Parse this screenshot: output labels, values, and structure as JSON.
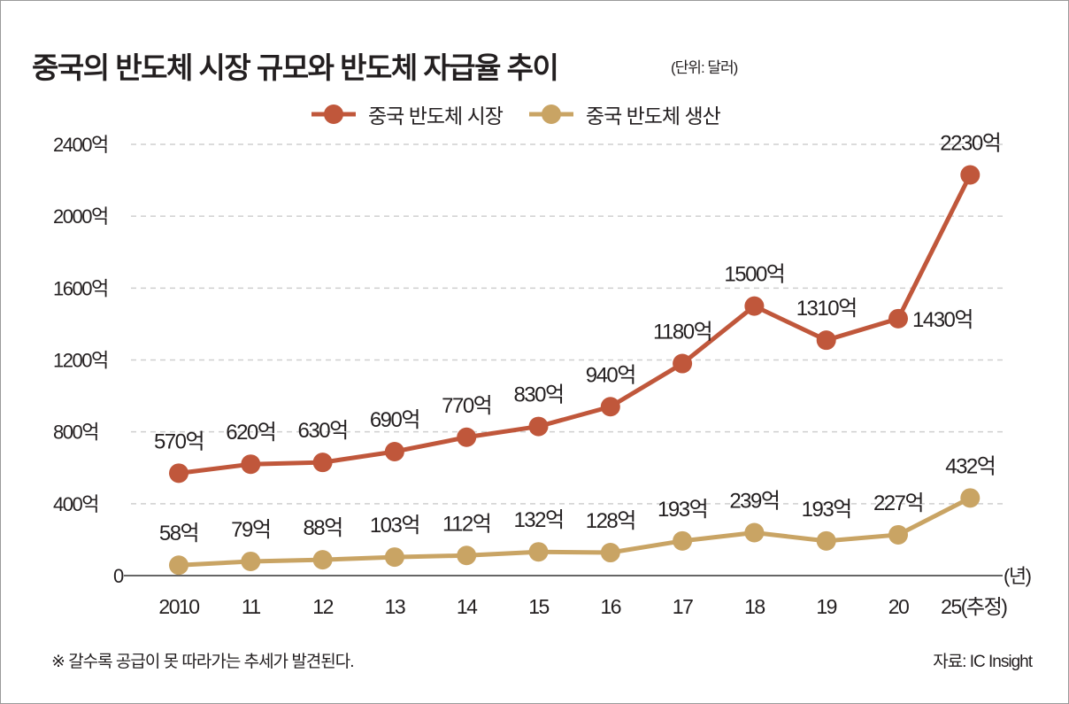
{
  "chart_data": {
    "type": "line",
    "title": "중국의 반도체 시장 규모와 반도체 자급율 추이",
    "unit_note": "(단위: 달러)",
    "categories": [
      "2010",
      "11",
      "12",
      "13",
      "14",
      "15",
      "16",
      "17",
      "18",
      "19",
      "20",
      "25(추정)"
    ],
    "xlabel": "(년)",
    "y_ticks": [
      "0",
      "400억",
      "800억",
      "1200억",
      "1600억",
      "2000억",
      "2400억"
    ],
    "y_tick_values": [
      0,
      400,
      800,
      1200,
      1600,
      2000,
      2400
    ],
    "ylim": [
      0,
      2400
    ],
    "grid": true,
    "legend_position": "top-center",
    "series": [
      {
        "name": "중국 반도체 시장",
        "color": "#c0573b",
        "values": [
          570,
          620,
          630,
          690,
          770,
          830,
          940,
          1180,
          1500,
          1310,
          1430,
          2230
        ],
        "labels": [
          "570억",
          "620억",
          "630억",
          "690억",
          "770억",
          "830억",
          "940억",
          "1180억",
          "1500억",
          "1310억",
          "1430억",
          "2230억"
        ]
      },
      {
        "name": "중국 반도체 생산",
        "color": "#c9a464",
        "values": [
          58,
          79,
          88,
          103,
          112,
          132,
          128,
          193,
          239,
          193,
          227,
          432
        ],
        "labels": [
          "58억",
          "79억",
          "88억",
          "103억",
          "112억",
          "132억",
          "128억",
          "193억",
          "239억",
          "193억",
          "227억",
          "432억"
        ]
      }
    ]
  },
  "footer": {
    "note": "※ 갈수록 공급이 못 따라가는 추세가 발견된다.",
    "source": "자료: IC Insight"
  }
}
